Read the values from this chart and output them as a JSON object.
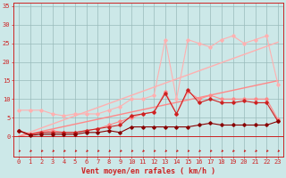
{
  "x": [
    0,
    1,
    2,
    3,
    4,
    5,
    6,
    7,
    8,
    9,
    10,
    11,
    12,
    13,
    14,
    15,
    16,
    17,
    18,
    19,
    20,
    21,
    22,
    23
  ],
  "series": [
    {
      "name": "lightest_pink_markers",
      "color": "#ffb0b0",
      "linewidth": 0.8,
      "marker": "D",
      "markersize": 1.8,
      "y": [
        7,
        7,
        7,
        6,
        5.5,
        6,
        6,
        6,
        7,
        8,
        10,
        10,
        11,
        26,
        10,
        26,
        25,
        24,
        26,
        27,
        25,
        26,
        27,
        14
      ]
    },
    {
      "name": "light_pink_nomarker_diagonal",
      "color": "#ffb0b0",
      "linewidth": 1.0,
      "marker": null,
      "y": [
        0,
        1.1,
        2.2,
        3.3,
        4.4,
        5.5,
        6.6,
        7.7,
        8.8,
        9.9,
        11,
        12.1,
        13.2,
        14.3,
        15.4,
        16.5,
        17.6,
        18.7,
        19.8,
        20.9,
        22,
        23.1,
        24.2,
        25.3
      ]
    },
    {
      "name": "medium_pink_diagonal",
      "color": "#ff8888",
      "linewidth": 1.0,
      "marker": null,
      "y": [
        0,
        0.65,
        1.3,
        1.95,
        2.6,
        3.25,
        3.9,
        4.55,
        5.2,
        5.85,
        6.5,
        7.15,
        7.8,
        8.45,
        9.1,
        9.75,
        10.4,
        11.05,
        11.7,
        12.35,
        13,
        13.65,
        14.3,
        14.95
      ]
    },
    {
      "name": "medium_pink_markers",
      "color": "#ff8888",
      "linewidth": 0.8,
      "marker": "D",
      "markersize": 1.8,
      "y": [
        1.5,
        0.5,
        1,
        1.5,
        1,
        1,
        1.5,
        2,
        3,
        4,
        5,
        6,
        6.5,
        12,
        6,
        12,
        10,
        11,
        10,
        10,
        10,
        10,
        10,
        4.5
      ]
    },
    {
      "name": "dark_red_markers",
      "color": "#cc2222",
      "linewidth": 0.8,
      "marker": "D",
      "markersize": 1.8,
      "y": [
        1.5,
        0.5,
        1,
        1,
        1,
        1,
        1.5,
        2,
        2.5,
        3,
        5.5,
        6,
        6.5,
        11.5,
        6,
        12.5,
        9,
        10,
        9,
        9,
        9.5,
        9,
        9,
        4
      ]
    },
    {
      "name": "darkest_red_markers",
      "color": "#880000",
      "linewidth": 0.8,
      "marker": "D",
      "markersize": 1.8,
      "y": [
        1.5,
        0.2,
        0.5,
        0.5,
        0.5,
        0.5,
        1,
        1,
        1.5,
        1,
        2.5,
        2.5,
        2.5,
        2.5,
        2.5,
        2.5,
        3,
        3.5,
        3,
        3,
        3,
        3,
        3,
        4
      ]
    }
  ],
  "background_color": "#cce8e8",
  "grid_color": "#99bbbb",
  "axis_color": "#cc2222",
  "xlabel": "Vent moyen/en rafales ( km/h )",
  "xlabel_color": "#cc2222",
  "xlabel_fontsize": 6,
  "ylabel_ticks": [
    0,
    5,
    10,
    15,
    20,
    25,
    30,
    35
  ],
  "xlim": [
    -0.5,
    23.5
  ],
  "ylim": [
    -5.5,
    36
  ],
  "tick_color": "#cc2222",
  "tick_fontsize": 5
}
